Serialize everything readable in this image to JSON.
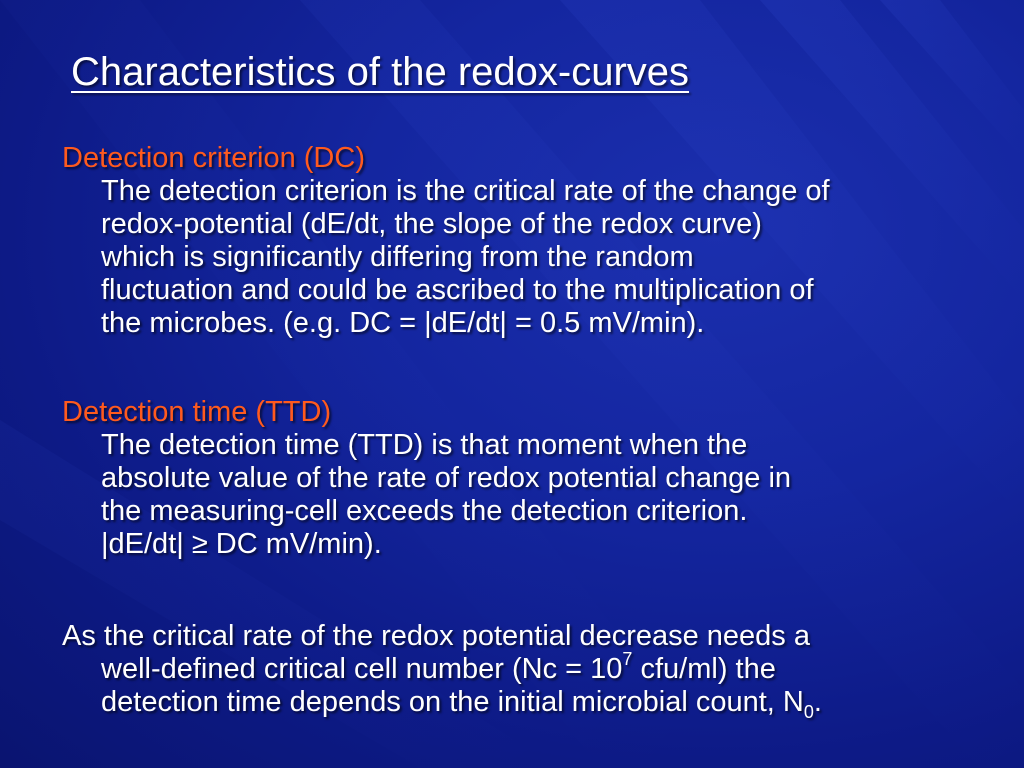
{
  "slide": {
    "title": "Characteristics of the redox-curves",
    "background_color": "#0d1a86",
    "heading_color": "#ff5a1e"
  },
  "sections": [
    {
      "heading": "Detection criterion (DC)",
      "lines": [
        "The detection criterion is the critical rate of the change of",
        "redox-potential (dE/dt, the slope of the redox curve)",
        "which is significantly differing from the random",
        "fluctuation and could be ascribed to the multiplication of",
        "the microbes. (e.g. DC = |dE/dt| = 0.5 mV/min)."
      ]
    },
    {
      "heading": "Detection time (TTD)",
      "lines": [
        "The detection time (TTD) is that moment when the",
        "absolute value of the rate of redox potential change in",
        "the measuring-cell exceeds the detection criterion.",
        "|dE/dt| ≥ DC mV/min)."
      ]
    }
  ],
  "closing": {
    "line1": "As the critical rate of the redox potential decrease needs a",
    "line2_pre": "well-defined critical cell number (Nc = 10",
    "line2_sup": "7",
    "line2_post": " cfu/ml) the",
    "line3_pre": "detection time depends on the initial microbial count, N",
    "line3_sub": "0",
    "line3_post": "."
  }
}
